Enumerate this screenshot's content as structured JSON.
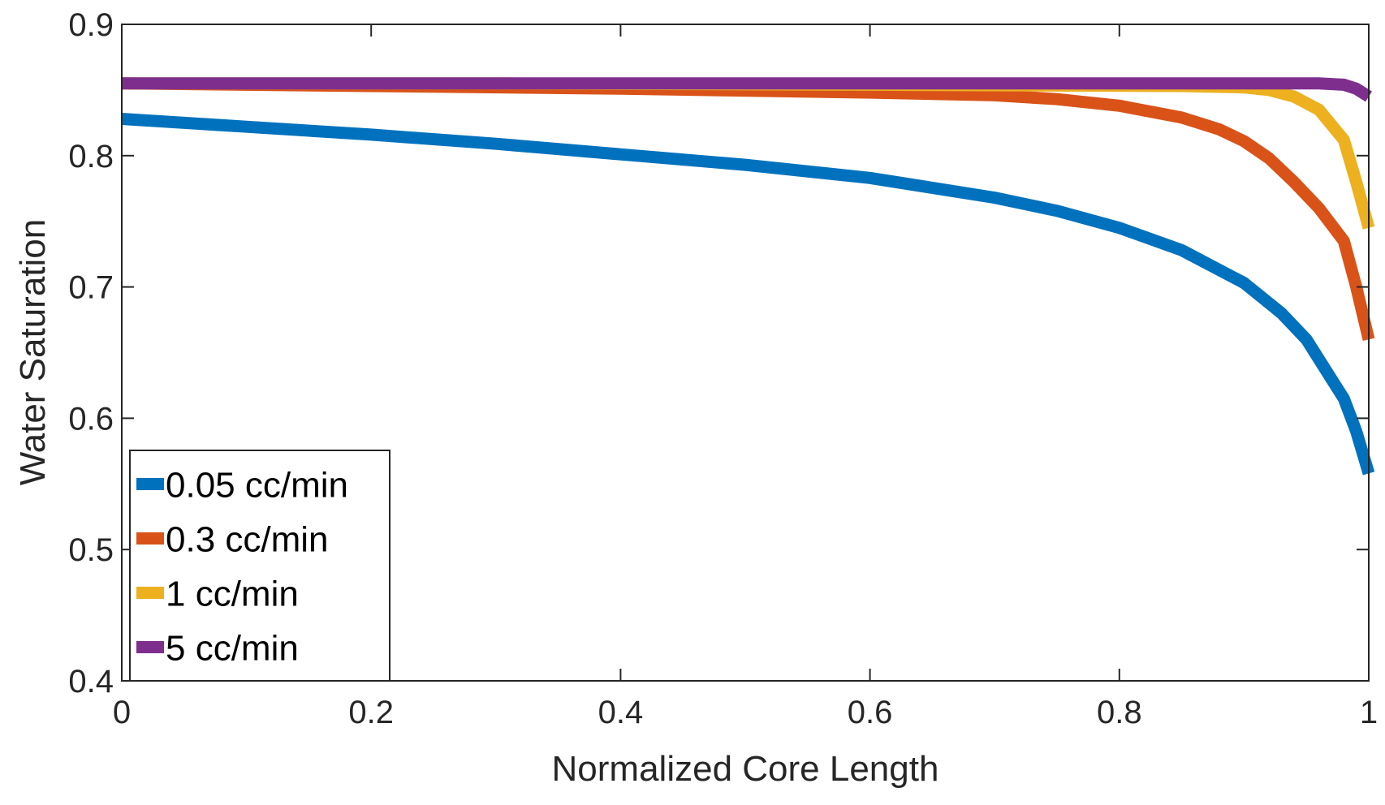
{
  "chart_data": {
    "type": "line",
    "title": "",
    "xlabel": "Normalized Core Length",
    "ylabel": "Water Saturation",
    "xlim": [
      0,
      1
    ],
    "ylim": [
      0.4,
      0.9
    ],
    "xticks": [
      "0",
      "0.2",
      "0.4",
      "0.6",
      "0.8",
      "1"
    ],
    "xtick_values": [
      0,
      0.2,
      0.4,
      0.6,
      0.8,
      1
    ],
    "yticks": [
      "0.4",
      "0.5",
      "0.6",
      "0.7",
      "0.8",
      "0.9"
    ],
    "ytick_values": [
      0.4,
      0.5,
      0.6,
      0.7,
      0.8,
      0.9
    ],
    "grid": false,
    "legend_position": "bottom-left",
    "series": [
      {
        "name": "0.05 cc/min",
        "color": "#0072BD",
        "x": [
          0,
          0.1,
          0.2,
          0.3,
          0.4,
          0.5,
          0.6,
          0.7,
          0.75,
          0.8,
          0.85,
          0.9,
          0.93,
          0.95,
          0.97,
          0.98,
          0.99,
          1.0
        ],
        "y": [
          0.828,
          0.822,
          0.816,
          0.809,
          0.801,
          0.793,
          0.783,
          0.768,
          0.758,
          0.745,
          0.728,
          0.703,
          0.68,
          0.66,
          0.63,
          0.615,
          0.59,
          0.558
        ]
      },
      {
        "name": "0.3 cc/min",
        "color": "#D95319",
        "x": [
          0,
          0.2,
          0.4,
          0.6,
          0.7,
          0.75,
          0.8,
          0.85,
          0.88,
          0.9,
          0.92,
          0.94,
          0.96,
          0.98,
          0.99,
          1.0
        ],
        "y": [
          0.855,
          0.853,
          0.851,
          0.848,
          0.846,
          0.843,
          0.838,
          0.829,
          0.82,
          0.811,
          0.798,
          0.78,
          0.76,
          0.735,
          0.7,
          0.66
        ]
      },
      {
        "name": "1 cc/min",
        "color": "#EDB120",
        "x": [
          0,
          0.3,
          0.6,
          0.85,
          0.9,
          0.92,
          0.94,
          0.96,
          0.98,
          0.99,
          1.0
        ],
        "y": [
          0.855,
          0.855,
          0.854,
          0.853,
          0.852,
          0.85,
          0.845,
          0.835,
          0.812,
          0.78,
          0.745
        ]
      },
      {
        "name": "5 cc/min",
        "color": "#7E2F8E",
        "x": [
          0,
          0.5,
          0.9,
          0.96,
          0.98,
          0.99,
          1.0
        ],
        "y": [
          0.855,
          0.855,
          0.855,
          0.855,
          0.854,
          0.851,
          0.845
        ]
      }
    ]
  }
}
